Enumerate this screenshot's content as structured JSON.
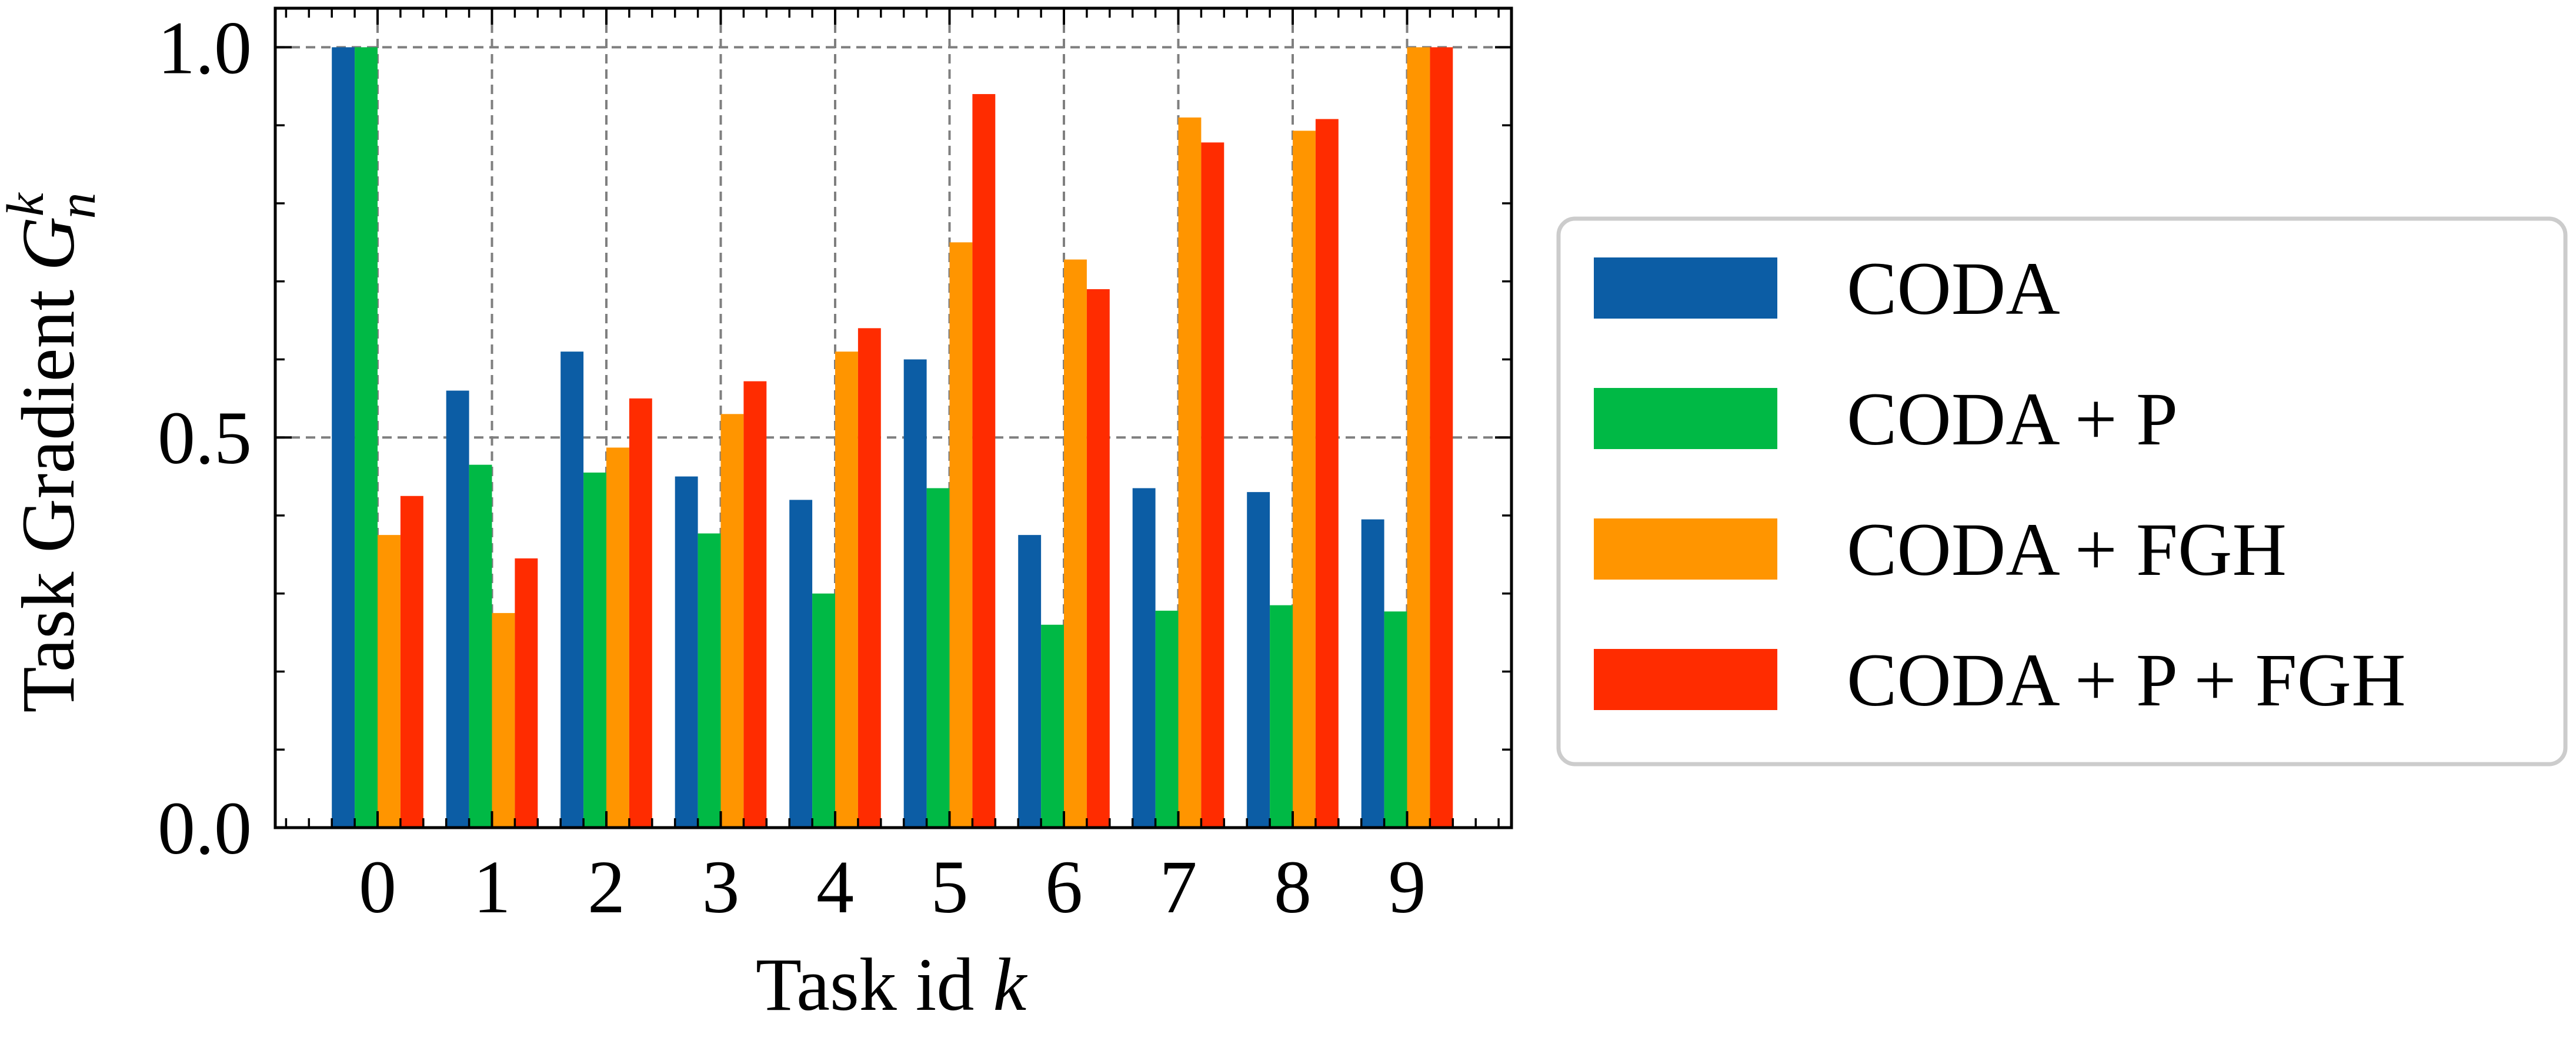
{
  "chart_data": {
    "type": "bar",
    "xlabel": "Task id",
    "xlabel_var": "k",
    "ylabel": "Task Gradient",
    "ylabel_var": "G",
    "ylabel_sup": "k",
    "ylabel_sub": "n",
    "categories": [
      "0",
      "1",
      "2",
      "3",
      "4",
      "5",
      "6",
      "7",
      "8",
      "9"
    ],
    "ylim": [
      0,
      1.05
    ],
    "yticks": [
      "0.0",
      "0.5",
      "1.0"
    ],
    "grid": true,
    "legend_position": "right",
    "series": [
      {
        "name": "CODA",
        "color": "#0c5da5",
        "values": [
          1.0,
          0.56,
          0.61,
          0.45,
          0.42,
          0.6,
          0.375,
          0.435,
          0.43,
          0.395
        ]
      },
      {
        "name": "CODA + P",
        "color": "#00b945",
        "values": [
          1.0,
          0.465,
          0.455,
          0.377,
          0.3,
          0.435,
          0.26,
          0.278,
          0.285,
          0.277
        ]
      },
      {
        "name": "CODA + FGH",
        "color": "#ff9500",
        "values": [
          0.375,
          0.275,
          0.487,
          0.53,
          0.61,
          0.75,
          0.728,
          0.91,
          0.893,
          1.0
        ]
      },
      {
        "name": "CODA + P + FGH",
        "color": "#ff2c00",
        "values": [
          0.425,
          0.345,
          0.55,
          0.572,
          0.64,
          0.94,
          0.69,
          0.878,
          0.908,
          1.0
        ]
      }
    ]
  }
}
